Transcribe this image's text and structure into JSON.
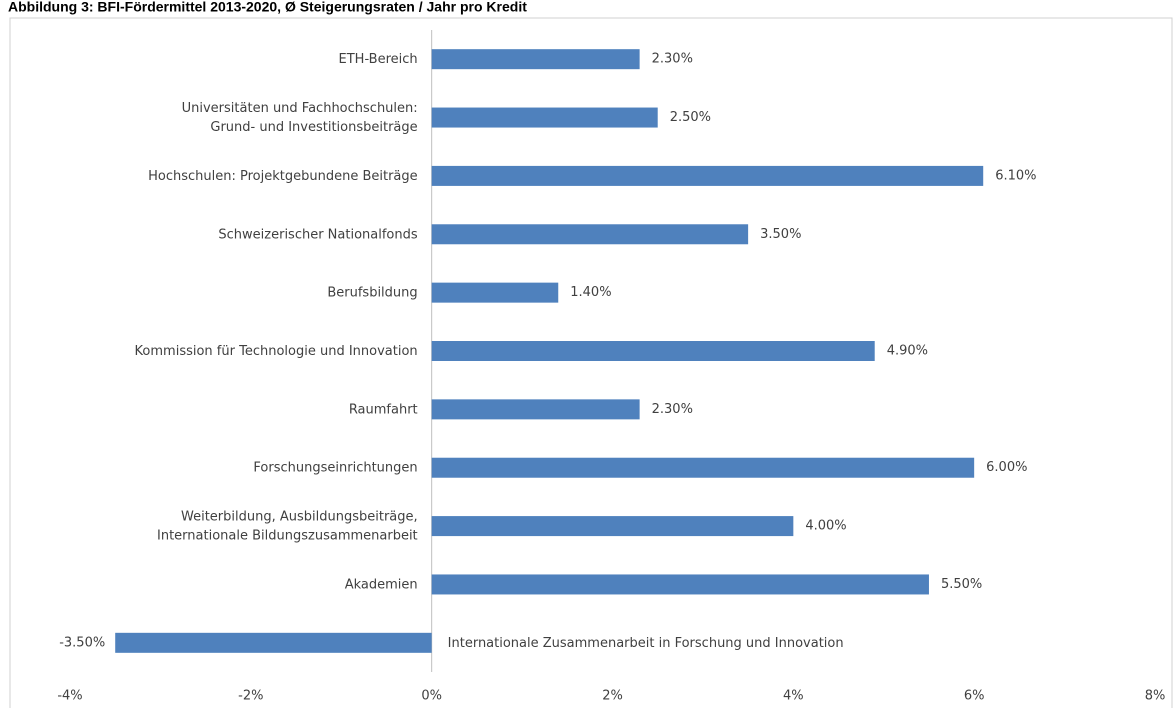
{
  "chart_data": {
    "type": "bar",
    "orientation": "horizontal",
    "title": "Abbildung 3: BFI-Fördermittel 2013-2020, Ø Steigerungsraten / Jahr pro Kredit",
    "categories": [
      [
        "ETH-Bereich"
      ],
      [
        "Universitäten und Fachhochschulen:",
        "Grund- und Investitionsbeiträge"
      ],
      [
        "Hochschulen: Projektgebundene Beiträge"
      ],
      [
        "Schweizerischer Nationalfonds"
      ],
      [
        "Berufsbildung"
      ],
      [
        "Kommission für Technologie und Innovation"
      ],
      [
        "Raumfahrt"
      ],
      [
        "Forschungseinrichtungen"
      ],
      [
        "Weiterbildung, Ausbildungsbeiträge,",
        "Internationale Bildungszusammenarbeit"
      ],
      [
        "Akademien"
      ],
      [
        "Internationale Zusammenarbeit in Forschung und Innovation"
      ]
    ],
    "values": [
      2.3,
      2.5,
      6.1,
      3.5,
      1.4,
      4.9,
      2.3,
      6.0,
      4.0,
      5.5,
      -3.5
    ],
    "value_labels": [
      "2.30%",
      "2.50%",
      "6.10%",
      "3.50%",
      "1.40%",
      "4.90%",
      "2.30%",
      "6.00%",
      "4.00%",
      "5.50%",
      "-3.50%"
    ],
    "color": "#4f81bd",
    "xlim": [
      -4,
      8
    ],
    "xticks": [
      {
        "value": -4,
        "label": "-4%"
      },
      {
        "value": -2,
        "label": "-2%"
      },
      {
        "value": 0,
        "label": "0%"
      },
      {
        "value": 2,
        "label": "2%"
      },
      {
        "value": 4,
        "label": "4%"
      },
      {
        "value": 6,
        "label": "6%"
      },
      {
        "value": 8,
        "label": "8%"
      }
    ],
    "grid": false
  }
}
